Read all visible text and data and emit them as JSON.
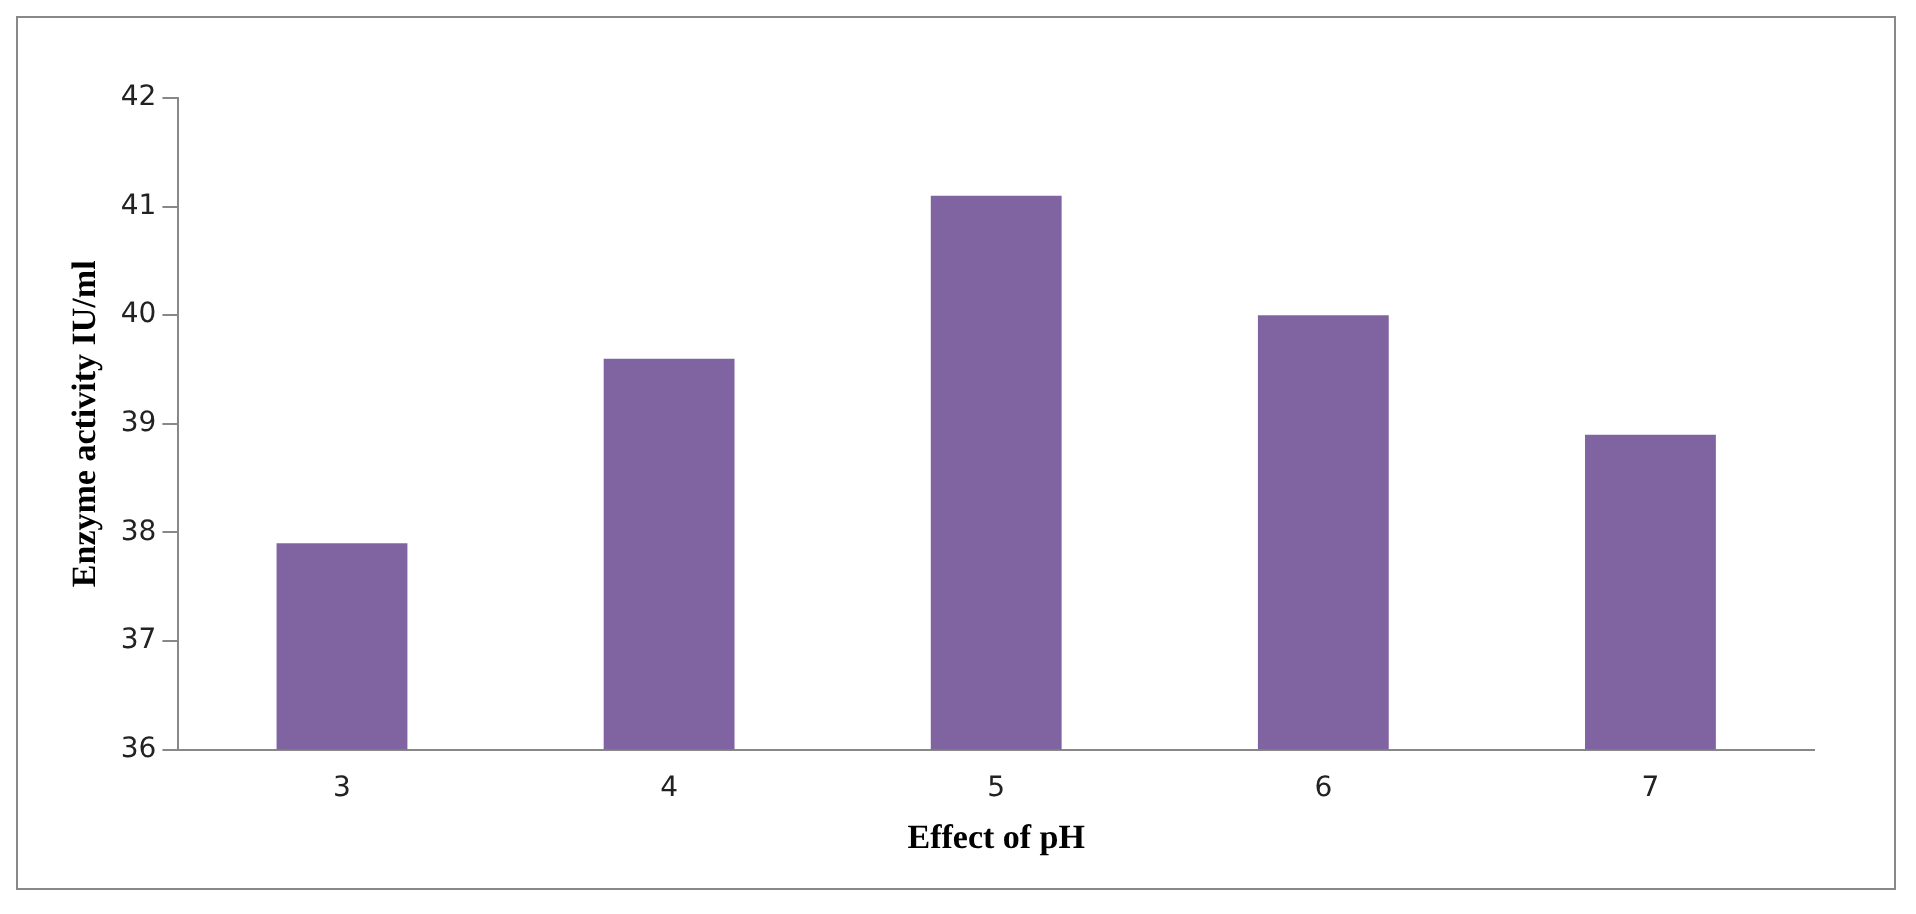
{
  "chart_data": {
    "type": "bar",
    "xlabel": "Effect of pH",
    "ylabel": "Enzyme activity IU/ml",
    "categories": [
      "3",
      "4",
      "5",
      "6",
      "7"
    ],
    "values": [
      37.9,
      39.6,
      41.1,
      40.0,
      38.9
    ],
    "color": "#8064a2",
    "ylim": [
      36,
      42
    ],
    "yticks": [
      36,
      37,
      38,
      39,
      40,
      41,
      42
    ],
    "grid": false,
    "legend": false
  }
}
